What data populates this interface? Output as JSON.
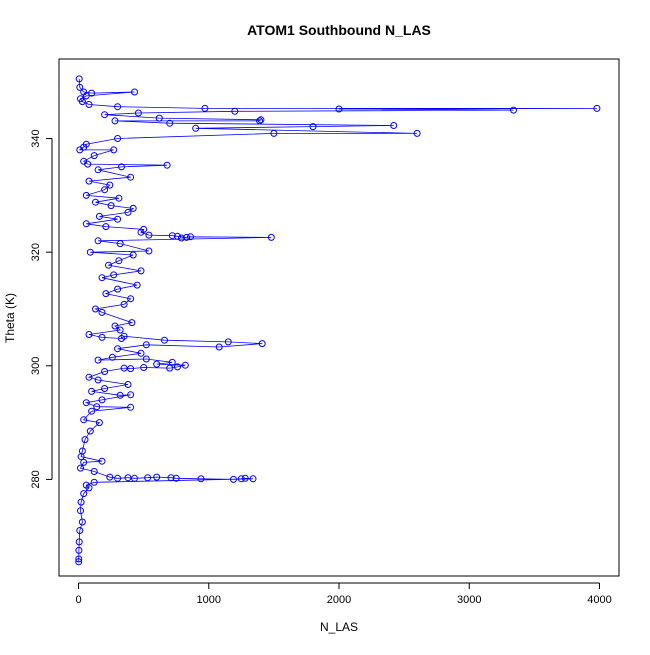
{
  "chart_data": {
    "type": "scatter",
    "title": "ATOM1 Southbound N_LAS",
    "xlabel": "N_LAS",
    "ylabel": "Theta (K)",
    "xlim": [
      -150,
      4150
    ],
    "ylim": [
      263,
      354
    ],
    "x_ticks": [
      0,
      1000,
      2000,
      3000,
      4000
    ],
    "y_ticks": [
      280,
      300,
      320,
      340
    ],
    "x_tick_labels": [
      "0",
      "1000",
      "2000",
      "3000",
      "4000"
    ],
    "y_tick_labels": [
      "280",
      "300",
      "320",
      "340"
    ],
    "grid": false,
    "legend": "none",
    "marker": "open-circle",
    "connected": true,
    "color": "#0000ff",
    "series": [
      {
        "points": [
          [
            5,
            350.5
          ],
          [
            10,
            349
          ],
          [
            40,
            348.2
          ],
          [
            100,
            348
          ],
          [
            430,
            348.2
          ],
          [
            60,
            347.5
          ],
          [
            15,
            347
          ],
          [
            30,
            346.5
          ],
          [
            80,
            346
          ],
          [
            300,
            345.6
          ],
          [
            970,
            345.3
          ],
          [
            3980,
            345.3
          ],
          [
            2000,
            345.2
          ],
          [
            3340,
            345
          ],
          [
            1200,
            344.8
          ],
          [
            460,
            344.5
          ],
          [
            200,
            344.2
          ],
          [
            620,
            343.6
          ],
          [
            1400,
            343.3
          ],
          [
            1390,
            343.1
          ],
          [
            280,
            343.1
          ],
          [
            700,
            342.7
          ],
          [
            2420,
            342.3
          ],
          [
            1800,
            342.1
          ],
          [
            900,
            341.8
          ],
          [
            2600,
            340.9
          ],
          [
            1500,
            340.9
          ],
          [
            300,
            340
          ],
          [
            60,
            339
          ],
          [
            40,
            338.5
          ],
          [
            10,
            338
          ],
          [
            270,
            338
          ],
          [
            120,
            337
          ],
          [
            40,
            336
          ],
          [
            70,
            335.5
          ],
          [
            680,
            335.3
          ],
          [
            330,
            335
          ],
          [
            150,
            334.5
          ],
          [
            400,
            333.2
          ],
          [
            80,
            332.5
          ],
          [
            240,
            331.8
          ],
          [
            200,
            331
          ],
          [
            60,
            330
          ],
          [
            310,
            329.5
          ],
          [
            130,
            328.8
          ],
          [
            250,
            328.2
          ],
          [
            420,
            327.7
          ],
          [
            380,
            327
          ],
          [
            160,
            326.3
          ],
          [
            300,
            325.8
          ],
          [
            60,
            325
          ],
          [
            210,
            324.5
          ],
          [
            500,
            324
          ],
          [
            480,
            323.5
          ],
          [
            540,
            323
          ],
          [
            720,
            322.9
          ],
          [
            760,
            322.8
          ],
          [
            830,
            322.6
          ],
          [
            790,
            322.5
          ],
          [
            860,
            322.7
          ],
          [
            1480,
            322.6
          ],
          [
            150,
            322
          ],
          [
            320,
            321.5
          ],
          [
            540,
            320.2
          ],
          [
            90,
            320
          ],
          [
            420,
            319.5
          ],
          [
            310,
            318.5
          ],
          [
            230,
            317.7
          ],
          [
            480,
            316.7
          ],
          [
            270,
            316
          ],
          [
            180,
            315.5
          ],
          [
            450,
            314.2
          ],
          [
            300,
            313.5
          ],
          [
            210,
            312.7
          ],
          [
            400,
            311.8
          ],
          [
            350,
            310.8
          ],
          [
            130,
            310
          ],
          [
            180,
            309.4
          ],
          [
            410,
            307.6
          ],
          [
            280,
            307
          ],
          [
            320,
            306.3
          ],
          [
            80,
            305.5
          ],
          [
            180,
            305
          ],
          [
            330,
            304.8
          ],
          [
            350,
            305.2
          ],
          [
            660,
            304.5
          ],
          [
            1150,
            304.2
          ],
          [
            1410,
            303.9
          ],
          [
            1080,
            303.3
          ],
          [
            520,
            303.7
          ],
          [
            300,
            303
          ],
          [
            480,
            302.2
          ],
          [
            260,
            301.5
          ],
          [
            150,
            301
          ],
          [
            520,
            301.2
          ],
          [
            720,
            300.6
          ],
          [
            600,
            300.3
          ],
          [
            820,
            300.1
          ],
          [
            760,
            299.8
          ],
          [
            700,
            299.6
          ],
          [
            500,
            299.7
          ],
          [
            400,
            299.5
          ],
          [
            350,
            299.6
          ],
          [
            200,
            299
          ],
          [
            80,
            298
          ],
          [
            150,
            297.5
          ],
          [
            380,
            296.7
          ],
          [
            200,
            296
          ],
          [
            100,
            295.5
          ],
          [
            320,
            294.8
          ],
          [
            400,
            294.9
          ],
          [
            180,
            294
          ],
          [
            60,
            293.5
          ],
          [
            140,
            292.8
          ],
          [
            400,
            292.7
          ],
          [
            100,
            292
          ],
          [
            40,
            290.5
          ],
          [
            160,
            290
          ],
          [
            90,
            288.5
          ],
          [
            50,
            287
          ],
          [
            30,
            285
          ],
          [
            20,
            284
          ],
          [
            180,
            283.2
          ],
          [
            40,
            283
          ],
          [
            15,
            282
          ],
          [
            120,
            281.4
          ],
          [
            240,
            280.4
          ],
          [
            300,
            280.2
          ],
          [
            380,
            280.3
          ],
          [
            430,
            280.2
          ],
          [
            530,
            280.3
          ],
          [
            600,
            280.4
          ],
          [
            710,
            280.3
          ],
          [
            750,
            280.2
          ],
          [
            940,
            280.1
          ],
          [
            1190,
            280
          ],
          [
            1250,
            280.1
          ],
          [
            1280,
            280.2
          ],
          [
            1340,
            280.1
          ],
          [
            120,
            279.5
          ],
          [
            60,
            279
          ],
          [
            80,
            278.5
          ],
          [
            40,
            277.5
          ],
          [
            20,
            276
          ],
          [
            15,
            274.5
          ],
          [
            30,
            272.5
          ],
          [
            10,
            271
          ],
          [
            5,
            269
          ],
          [
            3,
            267.5
          ],
          [
            2,
            266
          ],
          [
            1,
            265.5
          ]
        ]
      }
    ]
  }
}
